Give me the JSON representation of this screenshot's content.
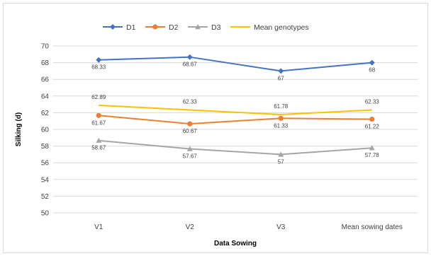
{
  "chart_data": {
    "type": "line",
    "title": "",
    "xlabel": "Data Sowing",
    "ylabel": "Silking  (d)",
    "ylim": [
      50,
      70
    ],
    "ytick_step": 2,
    "grid": "horizontal",
    "legend_position": "top",
    "categories": [
      "V1",
      "V2",
      "V3",
      "Mean sowing dates"
    ],
    "series": [
      {
        "name": "D1",
        "color": "#4472C4",
        "marker": "diamond",
        "values": [
          68.33,
          68.67,
          67,
          68
        ],
        "labels": [
          "68.33",
          "68.67",
          "67",
          "68"
        ],
        "label_pos": "below"
      },
      {
        "name": "D2",
        "color": "#ED7D31",
        "marker": "circle",
        "values": [
          61.67,
          60.67,
          61.33,
          61.22
        ],
        "labels": [
          "61.67",
          "60.67",
          "61.33",
          "61.22"
        ],
        "label_pos": "below"
      },
      {
        "name": "D3",
        "color": "#A5A5A5",
        "marker": "triangle",
        "values": [
          58.67,
          57.67,
          57,
          57.78
        ],
        "labels": [
          "58.67",
          "57.67",
          "57",
          "57.78"
        ],
        "label_pos": "below"
      },
      {
        "name": "Mean genotypes",
        "color": "#FFC000",
        "marker": "none",
        "values": [
          62.89,
          62.33,
          61.78,
          62.33
        ],
        "labels": [
          "62.89",
          "62.33",
          "61.78",
          "62.33"
        ],
        "label_pos": "above"
      }
    ]
  }
}
